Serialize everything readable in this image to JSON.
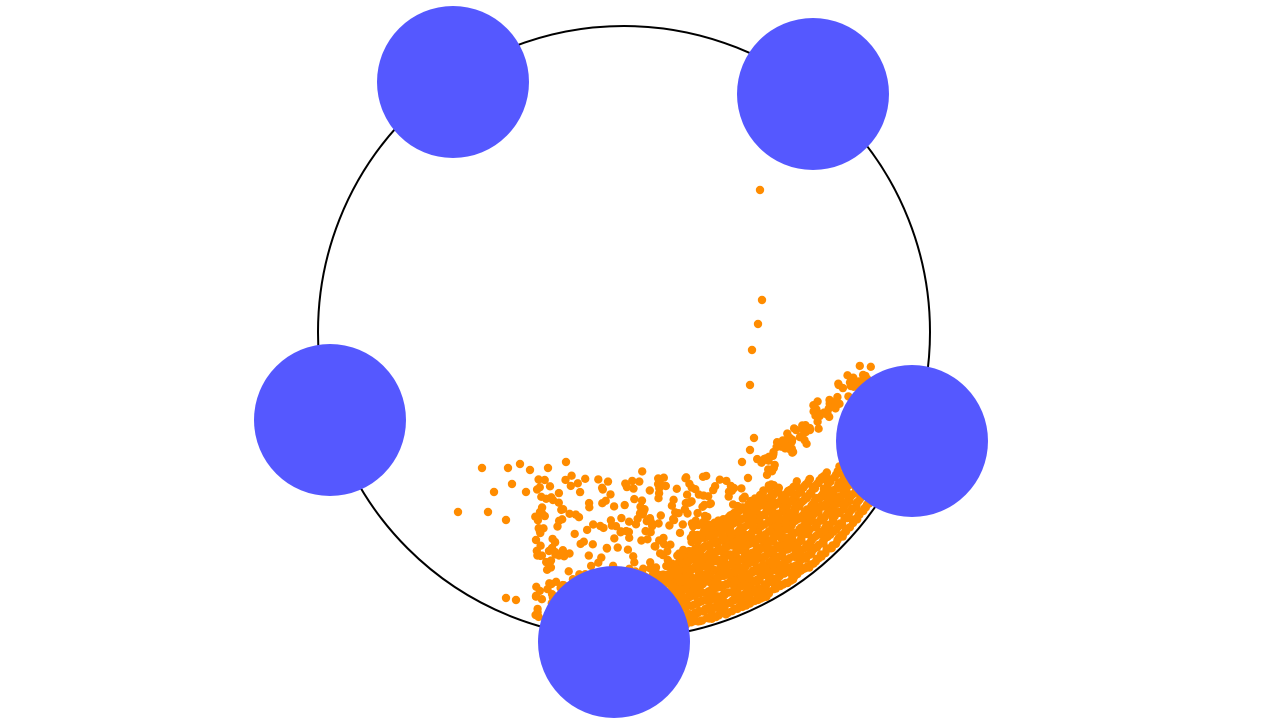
{
  "scene": {
    "background_color": "#ffffff",
    "ring": {
      "stroke_color": "#000000"
    },
    "pegs": {
      "count": 5,
      "color": "#5558ff"
    },
    "particles": {
      "color": "#ff8c00"
    }
  }
}
